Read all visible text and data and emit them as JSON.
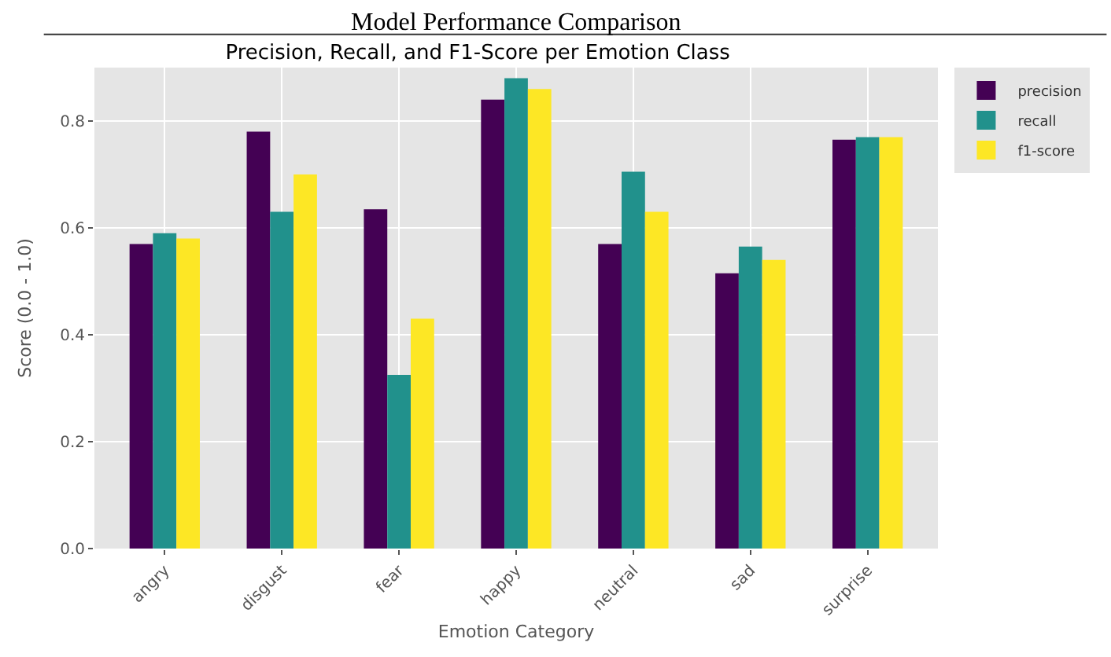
{
  "chart_data": {
    "type": "bar",
    "title": "Precision, Recall, and F1-Score per Emotion Class",
    "annotations": [
      "Model Performance Comparison"
    ],
    "xlabel": "Emotion Category",
    "ylabel": "Score (0.0 - 1.0)",
    "categories": [
      "angry",
      "disgust",
      "fear",
      "happy",
      "neutral",
      "sad",
      "surprise"
    ],
    "series": [
      {
        "name": "precision",
        "color": "#440154",
        "values": [
          0.57,
          0.78,
          0.635,
          0.84,
          0.57,
          0.515,
          0.765
        ]
      },
      {
        "name": "recall",
        "color": "#21918c",
        "values": [
          0.59,
          0.63,
          0.325,
          0.88,
          0.705,
          0.565,
          0.77
        ]
      },
      {
        "name": "f1-score",
        "color": "#fde725",
        "values": [
          0.58,
          0.7,
          0.43,
          0.86,
          0.63,
          0.54,
          0.77
        ]
      }
    ],
    "ylim": [
      0,
      0.9
    ],
    "yticks": [
      {
        "value": 0,
        "label": "0.0"
      },
      0.2,
      0.4,
      0.6,
      0.8
    ],
    "grid": true,
    "legend": "top right"
  }
}
